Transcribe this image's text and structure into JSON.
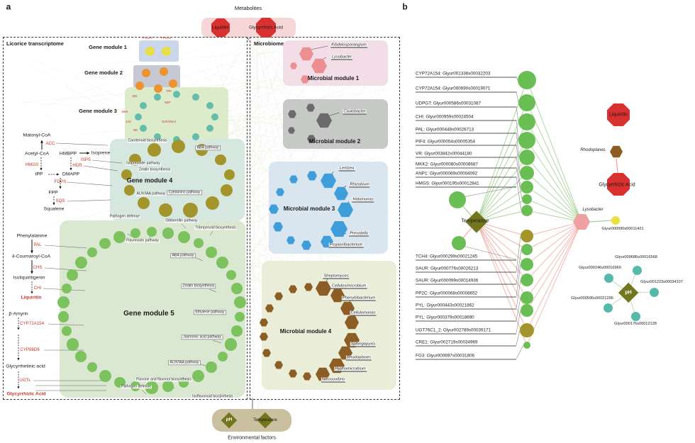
{
  "panel_a": {
    "label": "a",
    "metabolites": {
      "title": "Metabolites",
      "items": [
        "Liquiritin",
        "Glycyrrhizic Acid"
      ]
    },
    "transcriptome": {
      "title": "Licorice transcriptome"
    },
    "microbiome_title": "Microbiome",
    "gene_modules": [
      {
        "name": "Gene module 1",
        "tags": [
          "PYL2/3",
          "PP2C/4"
        ]
      },
      {
        "name": "Gene module 2",
        "tags": [
          "TPK"
        ]
      },
      {
        "name": "Gene module 3",
        "tags": [
          "WD",
          "NSP",
          "MKK",
          "JAZ",
          "SUGSNA4",
          "NR"
        ]
      },
      {
        "name": "Gene module 4",
        "pathways": [
          "Carotenoid biosynthesis",
          "ABA pathway",
          "Isoprenoide pathway",
          "Zeatin biosynthesis",
          "AUX/IAA pathway",
          "Cytokinins pathway",
          "Pathogen defense"
        ]
      },
      {
        "name": "Gene module 5",
        "pathways": [
          "Flavonoids pathway",
          "Gibberellin pathway",
          "Triterpenoid biosynthesis",
          "ABA pathway",
          "Zeatin biosynthesis",
          "Ethylene pathway",
          "Jasmonic acid pathway",
          "AUX/IAA pathway",
          "Flavone and flavonol biosynthesis",
          "Pathogen defense",
          "Isoflavonoid biosynthesis"
        ]
      }
    ],
    "pathway": {
      "items": [
        {
          "text": "Malonyl-CoA",
          "type": "metabolite"
        },
        {
          "text": "ACC",
          "type": "enzyme"
        },
        {
          "text": "Acetyl-CoA",
          "type": "metabolite"
        },
        {
          "text": "HMBPP",
          "type": "metabolite"
        },
        {
          "text": "Isoprene",
          "type": "metabolite"
        },
        {
          "text": "ISPS",
          "type": "enzyme"
        },
        {
          "text": "HMGS",
          "type": "enzyme"
        },
        {
          "text": "HDR",
          "type": "enzyme"
        },
        {
          "text": "IPP",
          "type": "metabolite"
        },
        {
          "text": "DMAPP",
          "type": "metabolite"
        },
        {
          "text": "FDPS",
          "type": "enzyme"
        },
        {
          "text": "FPP",
          "type": "metabolite"
        },
        {
          "text": "SQS",
          "type": "enzyme"
        },
        {
          "text": "Squalene",
          "type": "metabolite"
        },
        {
          "text": "Phenylalanine",
          "type": "metabolite"
        },
        {
          "text": "PAL",
          "type": "enzyme"
        },
        {
          "text": "4-Coumaroyl-CoA",
          "type": "metabolite"
        },
        {
          "text": "CHS",
          "type": "enzyme"
        },
        {
          "text": "Isoliquiritigenin",
          "type": "metabolite"
        },
        {
          "text": "CHI",
          "type": "enzyme"
        },
        {
          "text": "Liquiritin",
          "type": "product"
        },
        {
          "text": "β-Amyrin",
          "type": "metabolite"
        },
        {
          "text": "CYP72A154",
          "type": "enzyme"
        },
        {
          "text": "CYP88D6",
          "type": "enzyme"
        },
        {
          "text": "Glycyrrhetinic acid",
          "type": "metabolite"
        },
        {
          "text": "UGTs",
          "type": "enzyme"
        },
        {
          "text": "Glycyrrhizic Acid",
          "type": "product"
        }
      ]
    },
    "microbial_modules": [
      {
        "name": "Microbial module 1",
        "taxa": [
          "Kibdelosporangium",
          "Lysobacter"
        ]
      },
      {
        "name": "Microbial module 2",
        "taxa": [
          "Caulobacter"
        ]
      },
      {
        "name": "Microbial module 3",
        "taxa": [
          "Lentzea",
          "Rhizobium",
          "Halomonas",
          "Prevotella",
          "Propionibacterium"
        ]
      },
      {
        "name": "Microbial module 4",
        "taxa": [
          "Streptomyces",
          "Cellulosimicrobium",
          "Phenylobacterium",
          "Cellulomonas",
          "Sphingopyxis",
          "Rhodoplanes",
          "Hyphomicrobium",
          "Nitrosovibrio"
        ]
      }
    ],
    "environment": {
      "caption": "Environmental factors",
      "factors": [
        "pH",
        "Temperature"
      ]
    }
  },
  "panel_b": {
    "label": "b",
    "positive_genes": [
      "CYP72A154: Glyur001336s00032203",
      "CYP72A154: Glyur000690s00019071",
      "UDPGT: Glyur000586s00031087",
      "CHI: Glyur000959s00024504",
      "PAL: Glyur000448s00026713",
      "PIF4: Glyur000054s00005354",
      "VR: Glyur003842s00044180",
      "MKK2: Glyur000080s00008687",
      "ANP1: Glyur000069s00004092",
      "HMGS: Glyur000195s00012841"
    ],
    "negative_genes": [
      "TCH4: Glyur000299s00021245",
      "SAUR: Glyur000776s00026213",
      "SAUR: Glyur000099s00014936",
      "PP2C: Glyur000068s00008652",
      "PYL: Glyur000443s00021862",
      "PYL: Glyur000379s00018690",
      "UGT76C1_2: Glyur002789s00039171",
      "CRE1: Glyur002719s00034969",
      "FG3: Glyur000697s00031806"
    ],
    "temperature": "Temperature",
    "lysobacter": "Lysobacter",
    "lysobacter_target": "Glyur000090s00011421",
    "liquiritin": "Liquiritin",
    "rhodoplanes": "Rhodoplanes",
    "glycyrrhizic": "Glycyrrhizic Acid",
    "ph": {
      "label": "pH",
      "genes": [
        "Glyur000686s00016568",
        "Glyur000246s00016969",
        "Glyur001223s00034107",
        "Glyur000596s00021296",
        "Glyur000176s00012128"
      ]
    }
  },
  "colors": {
    "positive_edge": "#95cc83",
    "negative_edge": "#f0a29a",
    "metabolite_red": "#d93030",
    "olive": "#a3942b",
    "olive_dark": "#72761c",
    "green_node": "#6abf54",
    "teal": "#57b9a9",
    "microbe_pink": "#ec8f92",
    "microbe_gray": "#6b6b6b",
    "microbe_blue": "#3f9ed9",
    "microbe_brown": "#8d5d26",
    "yellow_node": "#e8e13e",
    "orange_node": "#ef9331"
  }
}
